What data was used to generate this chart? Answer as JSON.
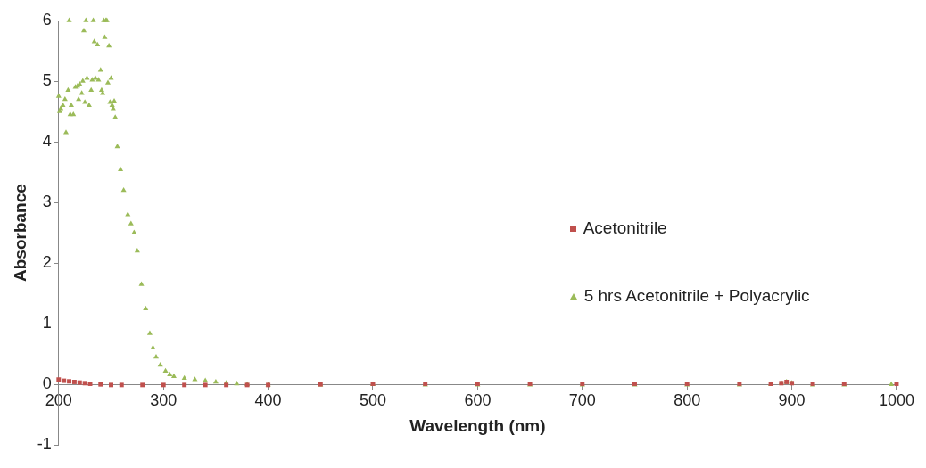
{
  "chart_data": {
    "type": "scatter",
    "xlabel": "Wavelength (nm)",
    "ylabel": "Absorbance",
    "xlim": [
      200,
      1000
    ],
    "xticks": [
      200,
      300,
      400,
      500,
      600,
      700,
      800,
      900,
      1000
    ],
    "ylim": [
      -1,
      6
    ],
    "yticks": [
      -1,
      0,
      1,
      2,
      3,
      4,
      5,
      6
    ],
    "grid": false,
    "legend": "right",
    "series": [
      {
        "name": "Acetonitrile",
        "color": "#c0504d",
        "marker": "square",
        "x": [
          200,
          205,
          210,
          215,
          220,
          225,
          230,
          240,
          250,
          260,
          280,
          300,
          320,
          340,
          360,
          380,
          400,
          450,
          500,
          550,
          600,
          650,
          700,
          750,
          800,
          850,
          880,
          890,
          895,
          900,
          920,
          950,
          1000
        ],
        "values": [
          0.08,
          0.06,
          0.05,
          0.04,
          0.03,
          0.02,
          0.01,
          0,
          -0.01,
          -0.01,
          -0.01,
          -0.01,
          -0.01,
          -0.01,
          -0.01,
          -0.01,
          -0.01,
          0,
          0.01,
          0.01,
          0.01,
          0.01,
          0.01,
          0.01,
          0.01,
          0.01,
          0.01,
          0.02,
          0.04,
          0.02,
          0.01,
          0.01,
          0.01
        ]
      },
      {
        "name": "5 hrs Acetonitrile + Polyacrylic",
        "color": "#9bbb59",
        "marker": "triangle",
        "x": [
          200,
          201,
          202,
          204,
          206,
          207,
          209,
          210,
          211,
          212,
          214,
          216,
          218,
          219,
          220,
          222,
          223,
          224,
          225,
          226,
          227,
          229,
          231,
          232,
          233,
          234,
          235,
          237,
          238,
          240,
          241,
          242,
          243,
          244,
          245,
          246,
          247,
          248,
          249,
          250,
          251,
          252,
          253,
          254,
          256,
          259,
          262,
          266,
          269,
          272,
          275,
          279,
          283,
          287,
          290,
          293,
          297,
          302,
          306,
          310,
          320,
          330,
          340,
          350,
          360,
          370,
          380,
          400,
          450,
          500,
          550,
          600,
          650,
          700,
          750,
          800,
          850,
          880,
          890,
          895,
          900,
          920,
          950,
          995
        ],
        "values": [
          4.75,
          4.5,
          4.55,
          4.6,
          4.7,
          4.15,
          4.85,
          6,
          4.45,
          4.6,
          4.45,
          4.9,
          4.92,
          4.7,
          4.95,
          4.8,
          5,
          5.83,
          4.65,
          6,
          5.05,
          4.6,
          4.85,
          5.02,
          6,
          5.65,
          5.05,
          5.6,
          5.02,
          5.18,
          4.85,
          4.8,
          6,
          5.72,
          6,
          6,
          4.97,
          5.58,
          4.65,
          5.05,
          4.6,
          4.55,
          4.67,
          4.4,
          3.92,
          3.54,
          3.2,
          2.8,
          2.65,
          2.5,
          2.2,
          1.65,
          1.25,
          0.84,
          0.6,
          0.45,
          0.32,
          0.22,
          0.16,
          0.13,
          0.1,
          0.08,
          0.06,
          0.04,
          0.02,
          0.01,
          0,
          -0.01,
          -0.01,
          0,
          -0.01,
          -0.01,
          -0.01,
          -0.01,
          -0.01,
          -0.01,
          -0.01,
          0,
          0.02,
          0.04,
          0.02,
          -0.01,
          -0.01,
          0
        ]
      }
    ]
  }
}
